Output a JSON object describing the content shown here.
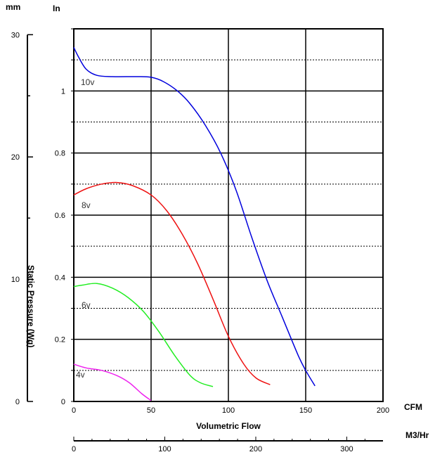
{
  "chart_data": {
    "type": "line",
    "header_left_unit": "mm",
    "header_in_unit": "In",
    "ylabel": "Static Pressure (Wg)",
    "xlabel": "Volumetric Flow",
    "x_unit_cfm": "CFM",
    "x_unit_m3": "M3/Hr",
    "x_cfm_ticks": [
      "0",
      "50",
      "100",
      "150",
      "200"
    ],
    "x_m3_ticks": [
      "0",
      "100",
      "200",
      "300"
    ],
    "y_in_ticks": [
      "0",
      "0.2",
      "0.4",
      "0.6",
      "0.8",
      "1"
    ],
    "y_mm_ticks": [
      "0",
      "10",
      "20",
      "30"
    ],
    "xlim": [
      0,
      200
    ],
    "ylim": [
      0,
      1.2
    ],
    "grid": true,
    "series": [
      {
        "name": "10v",
        "color": "#0000dd",
        "points": [
          [
            0,
            1.14
          ],
          [
            3,
            1.11
          ],
          [
            8,
            1.07
          ],
          [
            15,
            1.05
          ],
          [
            25,
            1.046
          ],
          [
            40,
            1.046
          ],
          [
            50,
            1.044
          ],
          [
            58,
            1.03
          ],
          [
            67,
            1.0
          ],
          [
            75,
            0.96
          ],
          [
            85,
            0.89
          ],
          [
            95,
            0.8
          ],
          [
            105,
            0.68
          ],
          [
            115,
            0.53
          ],
          [
            125,
            0.39
          ],
          [
            135,
            0.27
          ],
          [
            145,
            0.15
          ],
          [
            150,
            0.1
          ],
          [
            156,
            0.05
          ]
        ]
      },
      {
        "name": "8v",
        "color": "#ee1111",
        "points": [
          [
            0,
            0.665
          ],
          [
            8,
            0.685
          ],
          [
            18,
            0.7
          ],
          [
            28,
            0.705
          ],
          [
            38,
            0.695
          ],
          [
            50,
            0.665
          ],
          [
            60,
            0.615
          ],
          [
            70,
            0.54
          ],
          [
            80,
            0.445
          ],
          [
            90,
            0.33
          ],
          [
            100,
            0.21
          ],
          [
            110,
            0.12
          ],
          [
            118,
            0.075
          ],
          [
            127,
            0.054
          ]
        ]
      },
      {
        "name": "6v",
        "color": "#22ee22",
        "points": [
          [
            0,
            0.37
          ],
          [
            6,
            0.375
          ],
          [
            15,
            0.38
          ],
          [
            25,
            0.365
          ],
          [
            35,
            0.335
          ],
          [
            45,
            0.29
          ],
          [
            55,
            0.225
          ],
          [
            65,
            0.15
          ],
          [
            75,
            0.085
          ],
          [
            82,
            0.06
          ],
          [
            90,
            0.048
          ]
        ]
      },
      {
        "name": "4v",
        "color": "#ee22ee",
        "points": [
          [
            0,
            0.12
          ],
          [
            8,
            0.108
          ],
          [
            18,
            0.1
          ],
          [
            28,
            0.083
          ],
          [
            36,
            0.06
          ],
          [
            44,
            0.025
          ],
          [
            50,
            0.003
          ]
        ]
      }
    ]
  }
}
